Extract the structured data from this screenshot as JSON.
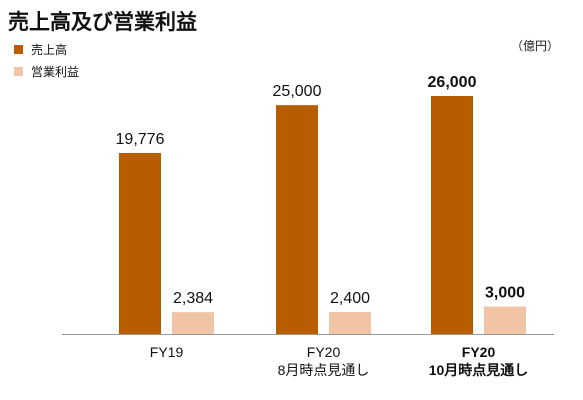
{
  "chart_data": {
    "type": "bar",
    "title": "売上高及び営業利益",
    "unit": "（億円）",
    "categories": [
      {
        "lines": [
          "FY19"
        ],
        "bold": false
      },
      {
        "lines": [
          "FY20",
          "8月時点見通し"
        ],
        "bold": false
      },
      {
        "lines": [
          "FY20",
          "10月時点見通し"
        ],
        "bold": true
      }
    ],
    "series": [
      {
        "name": "売上高",
        "color": "#b85c00",
        "values": [
          19776,
          25000,
          26000
        ]
      },
      {
        "name": "営業利益",
        "color": "#f0c4a4",
        "values": [
          2384,
          2400,
          3000
        ]
      }
    ],
    "data_labels": [
      [
        "19,776",
        "25,000",
        "26,000"
      ],
      [
        "2,384",
        "2,400",
        "3,000"
      ]
    ],
    "ylim": [
      0,
      26000
    ],
    "grid": false,
    "legend_position": "top-left"
  }
}
